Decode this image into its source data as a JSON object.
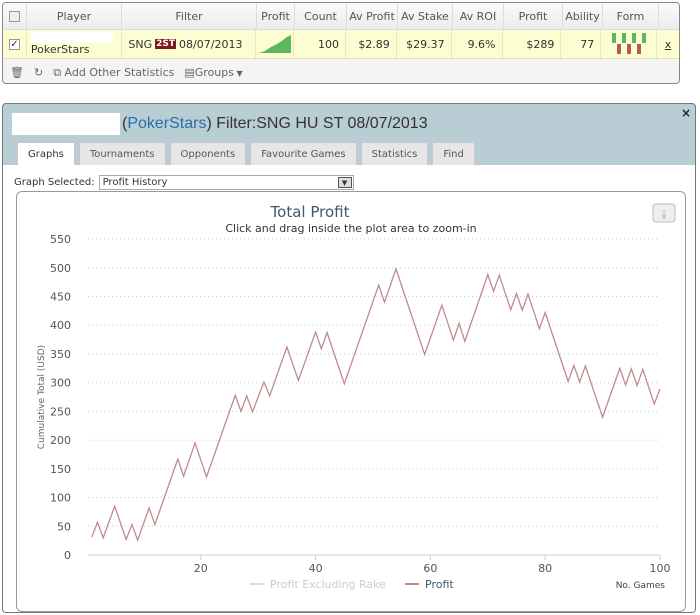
{
  "top_table": {
    "headers": [
      "Player",
      "Filter",
      "Profit",
      "Count",
      "Av Profit",
      "Av Stake",
      "Av ROI",
      "Profit",
      "Ability",
      "Form"
    ],
    "row": {
      "checked": true,
      "player_site": "PokerStars",
      "filter_prefix": "SNG",
      "filter_badge": "2ST",
      "filter_date": "08/07/2013",
      "count": "100",
      "av_profit": "$2.89",
      "av_stake": "$29.37",
      "av_roi": "9.6%",
      "profit": "$289",
      "ability": "77",
      "form": [
        "W",
        "L",
        "W",
        "L",
        "W",
        "L",
        "W"
      ],
      "remove": "x"
    },
    "toolbar": {
      "add_stats": "Add Other Statistics",
      "groups": "Groups"
    }
  },
  "panel": {
    "site": "PokerStars",
    "filter": "Filter:SNG HU ST 08/07/2013",
    "close": "×",
    "tabs": [
      "Graphs",
      "Tournaments",
      "Opponents",
      "Favourite Games",
      "Statistics",
      "Find"
    ],
    "active_tab": "Graphs",
    "graph_selected_label": "Graph Selected:",
    "graph_selected_value": "Profit History"
  },
  "colors": {
    "profit_line": "#c08a8e",
    "profit_excl_rake": "#dddddd",
    "header_bg": "#b9cdd5",
    "win": "#5cb85c",
    "loss": "#b55a5a"
  },
  "chart_data": {
    "type": "line",
    "title": "Total Profit",
    "subtitle": "Click and drag inside the plot area to zoom-in",
    "xlabel": "No. Games",
    "ylabel": "Cumulative Total (USD)",
    "xlim": [
      0,
      100
    ],
    "ylim": [
      0,
      550
    ],
    "xticks": [
      20,
      40,
      60,
      80,
      100
    ],
    "yticks": [
      0,
      50,
      100,
      150,
      200,
      250,
      300,
      350,
      400,
      450,
      500,
      550
    ],
    "grid": true,
    "legend": "bottom",
    "series": [
      {
        "name": "Profit Excluding Rake",
        "visible": false,
        "points": []
      },
      {
        "name": "Profit",
        "visible": true,
        "points": [
          [
            1,
            31
          ],
          [
            2,
            57
          ],
          [
            3,
            30
          ],
          [
            5,
            85
          ],
          [
            7,
            27
          ],
          [
            8,
            53
          ],
          [
            9,
            26
          ],
          [
            11,
            82
          ],
          [
            12,
            53
          ],
          [
            16,
            167
          ],
          [
            17,
            137
          ],
          [
            19,
            195
          ],
          [
            21,
            136
          ],
          [
            26,
            278
          ],
          [
            27,
            250
          ],
          [
            28,
            277
          ],
          [
            29,
            249
          ],
          [
            31,
            301
          ],
          [
            32,
            277
          ],
          [
            35,
            362
          ],
          [
            37,
            304
          ],
          [
            40,
            388
          ],
          [
            41,
            359
          ],
          [
            42,
            387
          ],
          [
            45,
            298
          ],
          [
            51,
            470
          ],
          [
            52,
            440
          ],
          [
            54,
            498
          ],
          [
            59,
            349
          ],
          [
            62,
            435
          ],
          [
            64,
            374
          ],
          [
            65,
            403
          ],
          [
            66,
            372
          ],
          [
            70,
            488
          ],
          [
            71,
            459
          ],
          [
            72,
            487
          ],
          [
            74,
            427
          ],
          [
            75,
            455
          ],
          [
            76,
            426
          ],
          [
            77,
            454
          ],
          [
            79,
            394
          ],
          [
            80,
            422
          ],
          [
            84,
            302
          ],
          [
            85,
            330
          ],
          [
            86,
            301
          ],
          [
            87,
            329
          ],
          [
            90,
            240
          ],
          [
            93,
            325
          ],
          [
            94,
            296
          ],
          [
            95,
            324
          ],
          [
            96,
            295
          ],
          [
            97,
            323
          ],
          [
            99,
            263
          ],
          [
            100,
            289
          ]
        ]
      }
    ]
  }
}
